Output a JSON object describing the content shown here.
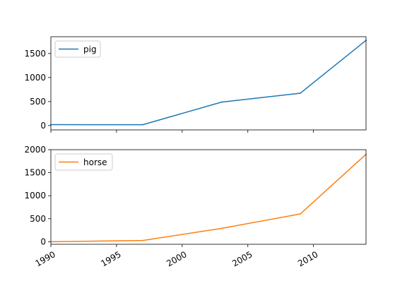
{
  "chart_data": [
    {
      "type": "line",
      "series": [
        {
          "name": "pig",
          "color": "#1f77b4",
          "x": [
            1990,
            1997,
            2003,
            2009,
            2014
          ],
          "values": [
            20,
            18,
            489,
            675,
            1774
          ]
        }
      ],
      "xlim": [
        1990,
        2014
      ],
      "ylim": [
        -90,
        1850
      ],
      "yticks": [
        0,
        500,
        1000,
        1500
      ],
      "show_xtick_labels": false,
      "legend": "upper-left"
    },
    {
      "type": "line",
      "series": [
        {
          "name": "horse",
          "color": "#ff7f0e",
          "x": [
            1990,
            1997,
            2003,
            2009,
            2014
          ],
          "values": [
            1,
            28,
            290,
            605,
            1900
          ]
        }
      ],
      "xlim": [
        1990,
        2014
      ],
      "ylim": [
        -55,
        2000
      ],
      "yticks": [
        0,
        500,
        1000,
        1500,
        2000
      ],
      "show_xtick_labels": true,
      "legend": "upper-left"
    }
  ],
  "shared_xticks": [
    1990,
    1995,
    2000,
    2005,
    2010
  ],
  "shared_xtick_labels": [
    "1990",
    "1995",
    "2000",
    "2005",
    "2010"
  ]
}
